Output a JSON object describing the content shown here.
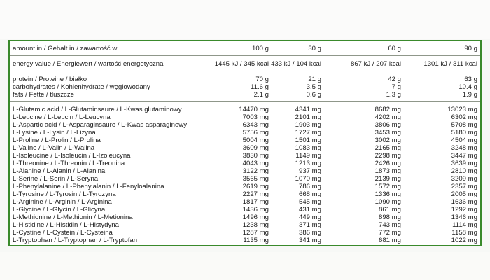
{
  "header": {
    "label": "amount in / Gehalt in / zawartość w",
    "cols": [
      "100 g",
      "30 g",
      "60 g",
      "90 g"
    ]
  },
  "energy": {
    "label": "energy value / Energiewert / wartość energetyczna",
    "values": [
      "1445 kJ / 345 kcal",
      "433 kJ / 104 kcal",
      "867 kJ / 207 kcal",
      "1301 kJ / 311 kcal"
    ]
  },
  "macros": [
    {
      "label": "protein / Proteine / białko",
      "values": [
        "70 g",
        "21 g",
        "42 g",
        "63 g"
      ]
    },
    {
      "label": "carbohydrates / Kohlenhydrate / węglowodany",
      "values": [
        "11.6 g",
        "3.5 g",
        "7 g",
        "10.4 g"
      ]
    },
    {
      "label": "fats / Fette / tłuszcze",
      "values": [
        "2.1 g",
        "0.6 g",
        "1.3 g",
        "1.9 g"
      ]
    }
  ],
  "amino_acids": [
    {
      "label": "L-Glutamic acid / L-Glutaminsaure / L-Kwas glutaminowy",
      "values": [
        "14470 mg",
        "4341 mg",
        "8682 mg",
        "13023 mg"
      ]
    },
    {
      "label": "L-Leucine / L-Leucin / L-Leucyna",
      "values": [
        "7003 mg",
        "2101 mg",
        "4202 mg",
        "6302 mg"
      ]
    },
    {
      "label": "L-Aspartic acid / L-Asparaginsaure / L-Kwas asparaginowy",
      "values": [
        "6343 mg",
        "1903 mg",
        "3806 mg",
        "5708 mg"
      ]
    },
    {
      "label": "L-Lysine / L-Lysin / L-Lizyna",
      "values": [
        "5756 mg",
        "1727 mg",
        "3453 mg",
        "5180 mg"
      ]
    },
    {
      "label": "L-Proline / L-Prolin / L-Prolina",
      "values": [
        "5004 mg",
        "1501 mg",
        "3002 mg",
        "4504 mg"
      ]
    },
    {
      "label": "L-Valine / L-Valin / L-Walina",
      "values": [
        "3609 mg",
        "1083 mg",
        "2165 mg",
        "3248 mg"
      ]
    },
    {
      "label": "L-Isoleucine / L-Isoleucin / L-Izoleucyna",
      "values": [
        "3830 mg",
        "1149 mg",
        "2298 mg",
        "3447 mg"
      ]
    },
    {
      "label": "L-Threonine / L-Threonin / L-Treonina",
      "values": [
        "4043 mg",
        "1213 mg",
        "2426 mg",
        "3639 mg"
      ]
    },
    {
      "label": "L-Alanine / L-Alanin / L-Alanina",
      "values": [
        "3122 mg",
        "937 mg",
        "1873 mg",
        "2810 mg"
      ]
    },
    {
      "label": "L-Serine / L-Serin / L-Seryna",
      "values": [
        "3565 mg",
        "1070 mg",
        "2139 mg",
        "3209 mg"
      ]
    },
    {
      "label": "L-Phenylalanine / L-Phenylalanin / L-Fenyloalanina",
      "values": [
        "2619 mg",
        "786 mg",
        "1572 mg",
        "2357 mg"
      ]
    },
    {
      "label": "L-Tyrosine / L-Tyrosin / L-Tyrozyna",
      "values": [
        "2227 mg",
        "668 mg",
        "1336 mg",
        "2005 mg"
      ]
    },
    {
      "label": "L-Arginine / L-Arginin / L-Arginina",
      "values": [
        "1817 mg",
        "545 mg",
        "1090 mg",
        "1636 mg"
      ]
    },
    {
      "label": "L-Glycine / L-Glycin / L-Glicyna",
      "values": [
        "1436 mg",
        "431 mg",
        "861 mg",
        "1292 mg"
      ]
    },
    {
      "label": "L-Methionine / L-Methionin / L-Metionina",
      "values": [
        "1496 mg",
        "449 mg",
        "898 mg",
        "1346 mg"
      ]
    },
    {
      "label": "L-Histidine / L-Histidin / L-Histydyna",
      "values": [
        "1238 mg",
        "371 mg",
        "743 mg",
        "1114 mg"
      ]
    },
    {
      "label": "L-Cystine / L-Cystein / L-Cysteina",
      "values": [
        "1287 mg",
        "386 mg",
        "772 mg",
        "1158 mg"
      ]
    },
    {
      "label": "L-Tryptophan / L-Tryptophan / L-Tryptofan",
      "values": [
        "1135 mg",
        "341 mg",
        "681 mg",
        "1022 mg"
      ]
    }
  ]
}
